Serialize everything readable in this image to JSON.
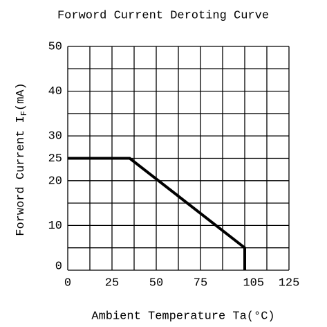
{
  "chart_data": {
    "type": "line",
    "title": "Forword Current Deroting Curve",
    "xlabel": "Ambient Temperature Ta(°C)",
    "ylabel": {
      "main": "Forword Current I",
      "sub": "F",
      "unit": "(mA)"
    },
    "x": [
      0,
      35,
      100,
      100
    ],
    "series": [
      {
        "color": "#000000",
        "values": [
          25,
          25,
          5,
          0
        ]
      }
    ],
    "xlim": [
      0,
      125
    ],
    "ylim": [
      0,
      50
    ],
    "xticks": [
      0,
      25,
      50,
      75,
      105,
      125
    ],
    "yticks": [
      0,
      10,
      20,
      25,
      30,
      40,
      50
    ],
    "xgrid": [
      0,
      12.5,
      25,
      37.5,
      50,
      62.5,
      75,
      87.5,
      100,
      112.5,
      125
    ],
    "ygrid": [
      0,
      5,
      10,
      15,
      20,
      25,
      30,
      35,
      40,
      45,
      50
    ],
    "grid": true
  }
}
